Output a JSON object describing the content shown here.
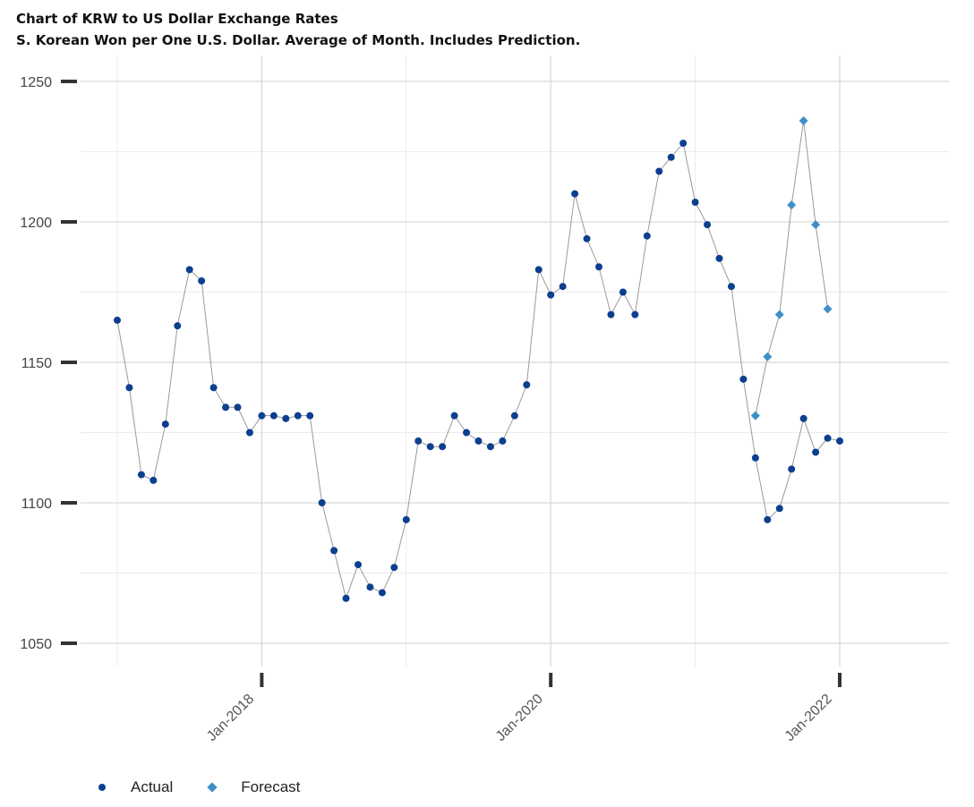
{
  "chart_data": {
    "type": "line",
    "title": "Chart of KRW to US Dollar Exchange Rates",
    "subtitle": "S. Korean Won per One U.S. Dollar.  Average of Month.  Includes Prediction.",
    "xlabel": "",
    "ylabel": "",
    "x_ticks": [
      {
        "label": "Jan-2018",
        "month_index": 12
      },
      {
        "label": "Jan-2020",
        "month_index": 36
      },
      {
        "label": "Jan-2022",
        "month_index": 60
      }
    ],
    "y_ticks": [
      1050,
      1100,
      1150,
      1200,
      1250
    ],
    "ylim": [
      1040,
      1260
    ],
    "grid": true,
    "legend_position": "bottom-left",
    "colors": {
      "actual": "#0d3f8f",
      "forecast": "#3e8fc7",
      "line": "#9a9a9a"
    },
    "series": [
      {
        "name": "Actual",
        "start_month": "Jan-2017",
        "values": [
          1165,
          1141,
          1110,
          1108,
          1128,
          1163,
          1183,
          1179,
          1141,
          1134,
          1134,
          1125,
          1131,
          1131,
          1130,
          1131,
          1131,
          1100,
          1083,
          1066,
          1078,
          1070,
          1068,
          1077,
          1094,
          1122,
          1120,
          1120,
          1131,
          1125,
          1122,
          1120,
          1122,
          1131,
          1142,
          1183,
          1174,
          1177,
          1210,
          1194,
          1184,
          1167,
          1175,
          1167,
          1195,
          1218,
          1223,
          1228,
          1207,
          1199,
          1187,
          1177,
          1144,
          1116,
          1094,
          1098,
          1112,
          1130,
          1118,
          1123,
          1122
        ]
      },
      {
        "name": "Forecast",
        "start_month": "Jun-2021",
        "values": [
          1131,
          1152,
          1167,
          1206,
          1236,
          1199,
          1169
        ]
      }
    ]
  },
  "legend": {
    "actual_label": "Actual",
    "forecast_label": "Forecast"
  }
}
